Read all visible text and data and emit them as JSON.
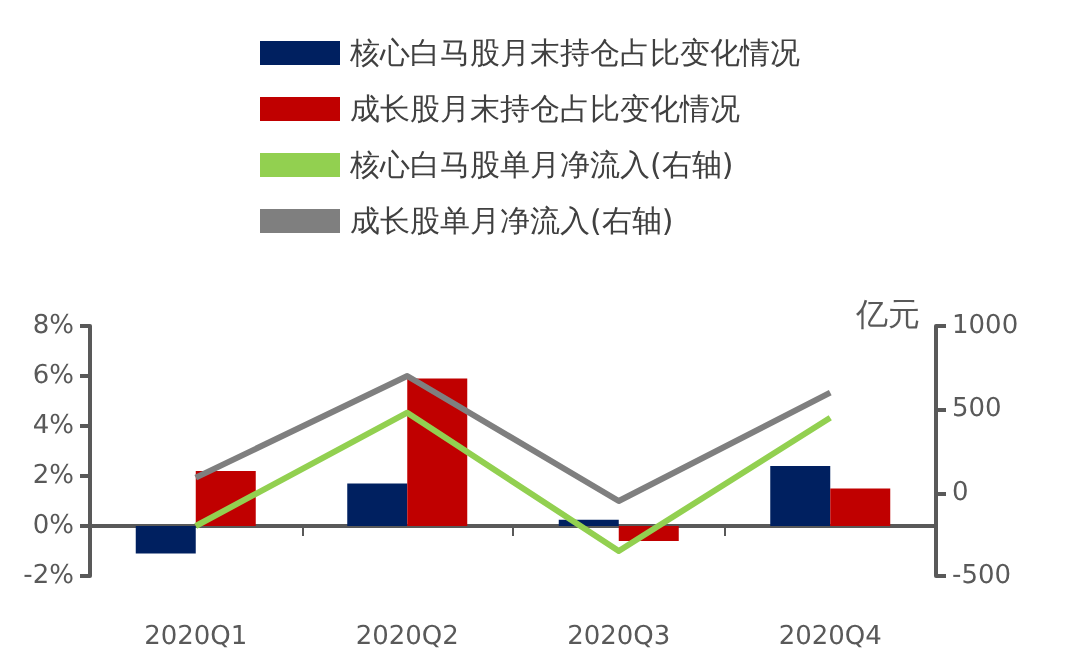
{
  "chart_data": {
    "type": "bar",
    "categories": [
      "2020Q1",
      "2020Q2",
      "2020Q3",
      "2020Q4"
    ],
    "y2label": "亿元",
    "series": [
      {
        "name": "核心白马股月末持仓占比变化情况",
        "color": "#002060",
        "values": [
          -1.1,
          1.7,
          0.25,
          2.4
        ]
      },
      {
        "name": "成长股月末持仓占比变化情况",
        "color": "#c00000",
        "values": [
          2.2,
          5.9,
          -0.6,
          1.5
        ]
      },
      {
        "name": "核心白马股单月净流入(右轴)",
        "type": "line",
        "axis": "y2",
        "color": "#92d050",
        "values": [
          -200,
          480,
          -350,
          450
        ]
      },
      {
        "name": "成长股单月净流入(右轴)",
        "type": "line",
        "axis": "y2",
        "color": "#7f7f7f",
        "values": [
          90,
          700,
          -50,
          600
        ]
      }
    ],
    "ylim": [
      -2,
      8
    ],
    "yticks": [
      {
        "value": -2,
        "label": "-2%"
      },
      {
        "value": 0,
        "label": "0%"
      },
      {
        "value": 2,
        "label": "2%"
      },
      {
        "value": 4,
        "label": "4%"
      },
      {
        "value": 6,
        "label": "6%"
      },
      {
        "value": 8,
        "label": "8%"
      }
    ],
    "y2lim": [
      -500,
      1000
    ],
    "y2ticks": [
      -500,
      0,
      500,
      1000
    ],
    "legend": "top",
    "marker": "none",
    "line_style": "solid"
  }
}
